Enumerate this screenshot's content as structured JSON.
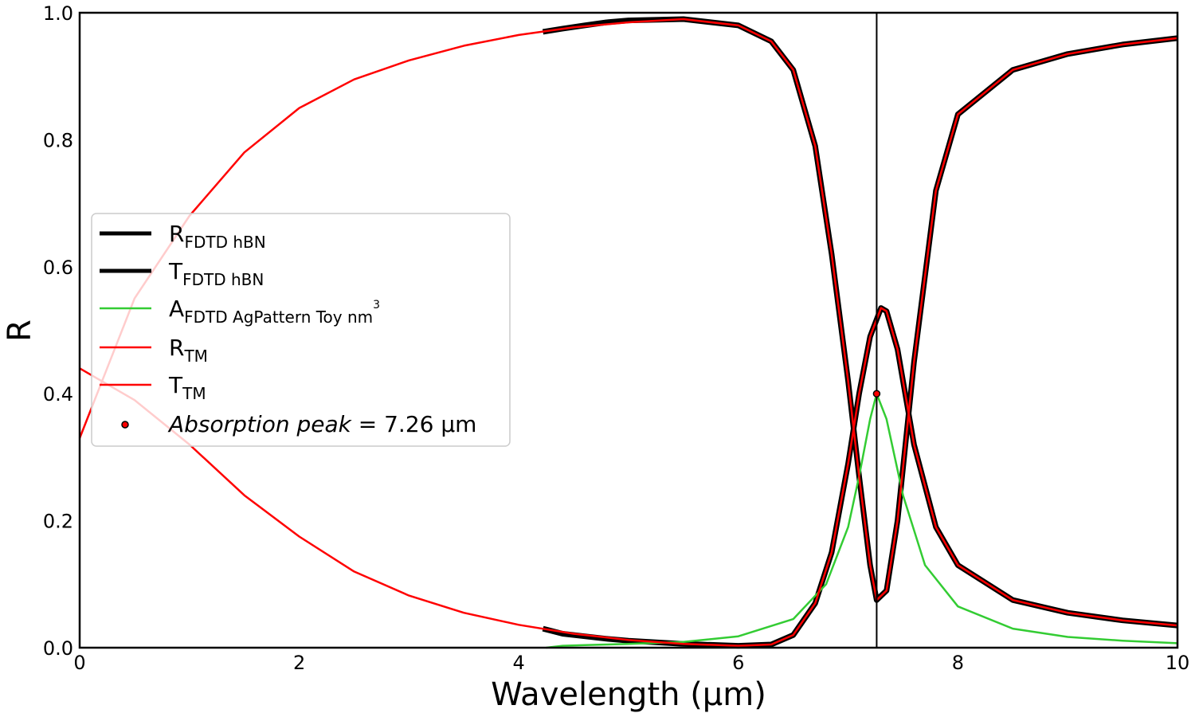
{
  "chart_data": {
    "type": "line",
    "xlabel": "Wavelength (μm)",
    "ylabel": "R",
    "xlim": [
      0,
      10
    ],
    "ylim": [
      0,
      1.0
    ],
    "x_ticks": [
      0,
      2,
      4,
      6,
      8,
      10
    ],
    "x_tick_labels": [
      "0",
      "2",
      "4",
      "6",
      "8",
      "10"
    ],
    "y_ticks": [
      0.0,
      0.2,
      0.4,
      0.6,
      0.8,
      1.0
    ],
    "y_tick_labels": [
      "0.0",
      "0.2",
      "0.4",
      "0.6",
      "0.8",
      "1.0"
    ],
    "grid": false,
    "legend_position": "center-left",
    "vertical_line_x": 7.26,
    "series": [
      {
        "key": "R_fdtd",
        "label_main": "R",
        "label_sub": "FDTD hBN",
        "label_sup": "",
        "color": "#000000",
        "style": "thick",
        "x": [
          4.22,
          4.4,
          4.6,
          4.8,
          5.0,
          5.5,
          6.0,
          6.3,
          6.5,
          6.7,
          6.85,
          7.0,
          7.1,
          7.2,
          7.26,
          7.35,
          7.45,
          7.6,
          7.8,
          8.0,
          8.5,
          9.0,
          9.5,
          10.0
        ],
        "y": [
          0.97,
          0.975,
          0.98,
          0.985,
          0.988,
          0.99,
          0.98,
          0.955,
          0.91,
          0.79,
          0.62,
          0.42,
          0.27,
          0.13,
          0.075,
          0.09,
          0.2,
          0.45,
          0.72,
          0.84,
          0.91,
          0.935,
          0.95,
          0.96
        ]
      },
      {
        "key": "T_fdtd",
        "label_main": "T",
        "label_sub": "FDTD hBN",
        "label_sup": "",
        "color": "#000000",
        "style": "thick",
        "x": [
          4.22,
          4.4,
          4.6,
          4.8,
          5.0,
          5.5,
          6.0,
          6.3,
          6.5,
          6.7,
          6.85,
          7.0,
          7.1,
          7.2,
          7.3,
          7.35,
          7.45,
          7.6,
          7.8,
          8.0,
          8.5,
          9.0,
          9.5,
          10.0
        ],
        "y": [
          0.03,
          0.022,
          0.018,
          0.014,
          0.011,
          0.006,
          0.003,
          0.005,
          0.02,
          0.07,
          0.15,
          0.29,
          0.4,
          0.49,
          0.535,
          0.53,
          0.47,
          0.32,
          0.19,
          0.13,
          0.075,
          0.055,
          0.043,
          0.035
        ]
      },
      {
        "key": "A_fdtd",
        "label_main": "A",
        "label_sub": "FDTD AgPattern Toy nm",
        "label_sup": "3",
        "color": "#33cc33",
        "style": "thin",
        "x": [
          4.25,
          4.4,
          4.6,
          4.8,
          5.0,
          5.5,
          6.0,
          6.5,
          6.8,
          7.0,
          7.1,
          7.2,
          7.26,
          7.35,
          7.5,
          7.7,
          8.0,
          8.5,
          9.0,
          9.5,
          10.0
        ],
        "y": [
          0.0,
          0.003,
          0.004,
          0.005,
          0.006,
          0.009,
          0.018,
          0.045,
          0.1,
          0.19,
          0.27,
          0.36,
          0.4,
          0.36,
          0.24,
          0.13,
          0.065,
          0.03,
          0.017,
          0.011,
          0.007
        ]
      },
      {
        "key": "R_TM",
        "label_main": "R",
        "label_sub": "TM",
        "label_sup": "",
        "color": "#ff0000",
        "style": "thin",
        "x": [
          0.0,
          0.5,
          1.0,
          1.5,
          2.0,
          2.5,
          3.0,
          3.5,
          4.0,
          4.5,
          5.0,
          5.5,
          6.0,
          6.3,
          6.5,
          6.7,
          6.85,
          7.0,
          7.1,
          7.2,
          7.26,
          7.35,
          7.45,
          7.6,
          7.8,
          8.0,
          8.5,
          9.0,
          9.5,
          10.0
        ],
        "y": [
          0.33,
          0.55,
          0.68,
          0.78,
          0.85,
          0.895,
          0.925,
          0.948,
          0.965,
          0.977,
          0.985,
          0.99,
          0.98,
          0.955,
          0.91,
          0.79,
          0.62,
          0.42,
          0.27,
          0.13,
          0.075,
          0.09,
          0.2,
          0.45,
          0.72,
          0.84,
          0.91,
          0.935,
          0.95,
          0.96
        ]
      },
      {
        "key": "T_TM",
        "label_main": "T",
        "label_sub": "TM",
        "label_sup": "",
        "color": "#ff0000",
        "style": "thin",
        "x": [
          0.0,
          0.5,
          1.0,
          1.5,
          2.0,
          2.5,
          3.0,
          3.5,
          4.0,
          4.5,
          5.0,
          5.5,
          6.0,
          6.3,
          6.5,
          6.7,
          6.85,
          7.0,
          7.1,
          7.2,
          7.3,
          7.35,
          7.45,
          7.6,
          7.8,
          8.0,
          8.5,
          9.0,
          9.5,
          10.0
        ],
        "y": [
          0.44,
          0.39,
          0.32,
          0.24,
          0.175,
          0.12,
          0.082,
          0.055,
          0.036,
          0.022,
          0.012,
          0.006,
          0.003,
          0.005,
          0.02,
          0.07,
          0.15,
          0.29,
          0.4,
          0.49,
          0.535,
          0.53,
          0.47,
          0.32,
          0.19,
          0.13,
          0.075,
          0.055,
          0.043,
          0.035
        ]
      }
    ],
    "peak_point": {
      "label_main": "Absorption peak",
      "label_eq": " = 7.26 μm",
      "x": 7.26,
      "y": 0.4,
      "color": "#ff0000",
      "edge_color": "#000000"
    }
  }
}
